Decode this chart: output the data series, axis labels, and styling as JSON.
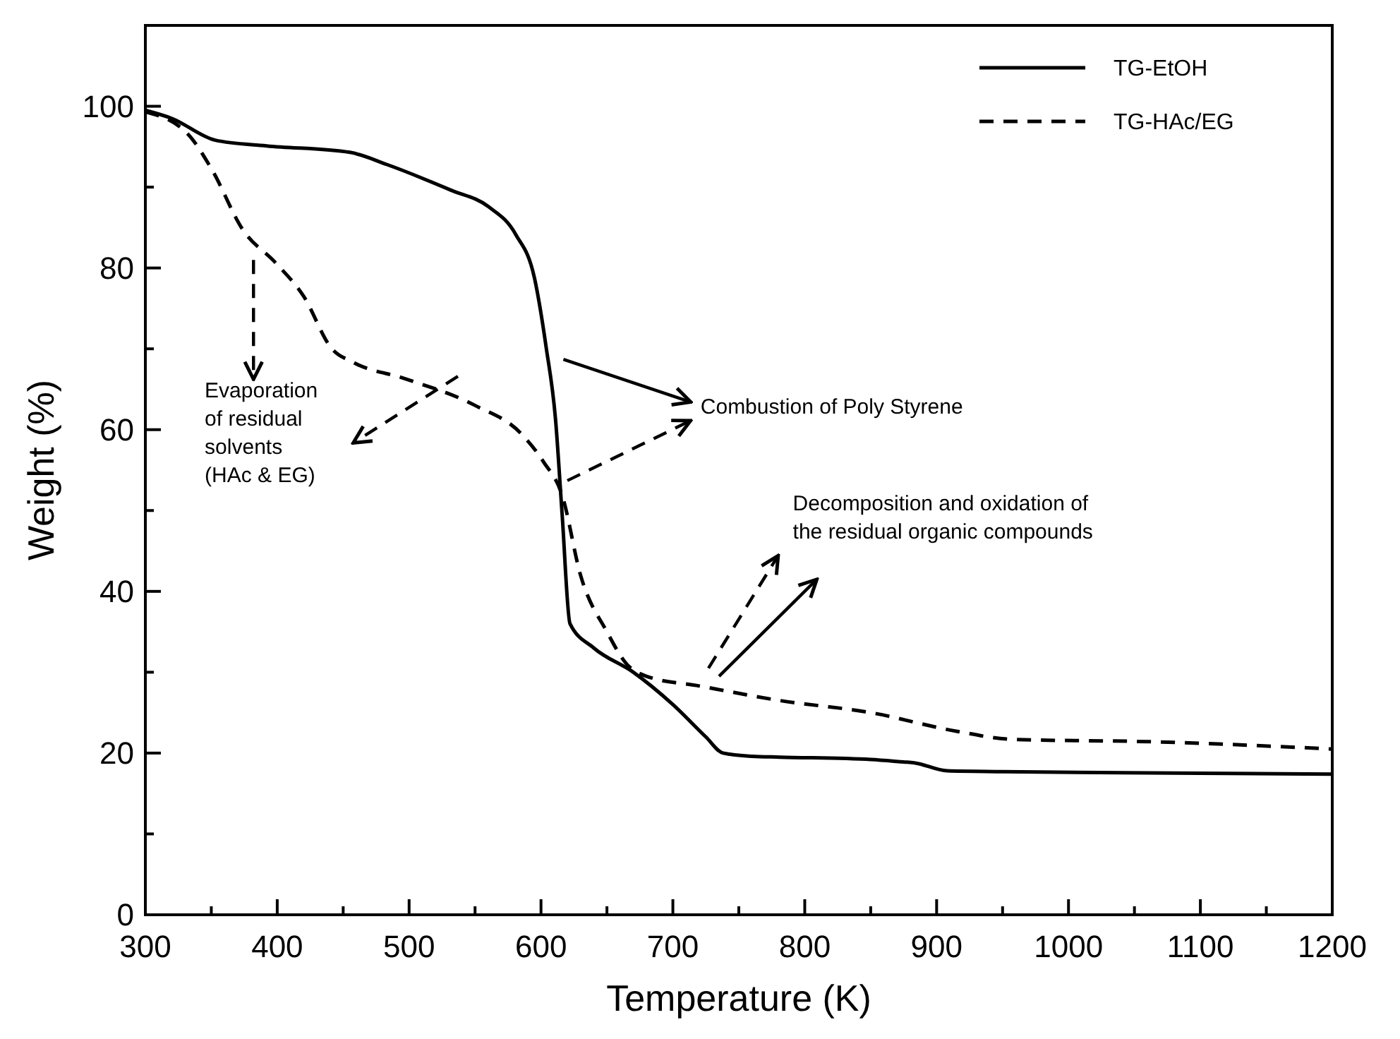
{
  "chart_data": {
    "type": "line",
    "xlabel": "Temperature (K)",
    "ylabel": "Weight (%)",
    "xlim": [
      300,
      1200
    ],
    "ylim": [
      0,
      110
    ],
    "xticks": [
      300,
      {
        "value": 350,
        "label": null
      },
      400,
      {
        "value": 450,
        "label": null
      },
      500,
      {
        "value": 550,
        "label": null
      },
      600,
      {
        "value": 650,
        "label": null
      },
      700,
      {
        "value": 750,
        "label": null
      },
      800,
      {
        "value": 850,
        "label": null
      },
      900,
      {
        "value": 950,
        "label": null
      },
      1000,
      {
        "value": 1050,
        "label": null
      },
      1100,
      {
        "value": 1150,
        "label": null
      },
      1200
    ],
    "yticks": [
      0,
      {
        "value": 10,
        "label": null
      },
      20,
      {
        "value": 30,
        "label": null
      },
      40,
      {
        "value": 50,
        "label": null
      },
      60,
      {
        "value": 70,
        "label": null
      },
      80,
      {
        "value": 90,
        "label": null
      },
      100
    ],
    "grid": false,
    "legend": "top right",
    "marker": "none",
    "series": [
      {
        "name": "TG-EtOH",
        "color": "#000000",
        "line_style": "solid",
        "x": [
          300,
          320,
          353,
          392,
          455,
          483,
          532,
          560,
          581,
          595,
          604,
          611,
          616,
          622,
          640,
          670,
          700,
          725,
          738,
          760,
          781,
          850,
          875,
          883,
          908,
          950,
          1100,
          1200
        ],
        "values": [
          99.5,
          98.5,
          95.8,
          95.1,
          94.3,
          92.8,
          89.6,
          87.6,
          84.1,
          78.8,
          70.1,
          61.3,
          49.6,
          36,
          33,
          30,
          26,
          22,
          20,
          19.6,
          19.5,
          19.2,
          18.9,
          18.8,
          17.8,
          17.7,
          17.5,
          17.4
        ]
      },
      {
        "name": "TG-HAc/EG",
        "color": "#000000",
        "line_style": "dashed",
        "x": [
          300,
          332,
          350,
          374,
          399,
          420,
          441,
          458,
          497,
          550,
          585,
          602,
          616,
          630,
          650,
          665,
          680,
          720,
          781,
          850,
          915,
          957,
          1063,
          1200
        ],
        "values": [
          99.3,
          96.6,
          92.3,
          84.7,
          80.6,
          76.5,
          70.1,
          68.3,
          66.3,
          63,
          59.5,
          56,
          51.9,
          42,
          35,
          31,
          29.5,
          28.3,
          26.5,
          25,
          22.7,
          21.7,
          21.4,
          20.5
        ]
      }
    ],
    "annotations": [
      "Evaporation\nof residual\nsolvents\n(HAc & EG)",
      "Combustion of Poly Styrene",
      "Decomposition and oxidation of\nthe residual organic compounds"
    ]
  }
}
